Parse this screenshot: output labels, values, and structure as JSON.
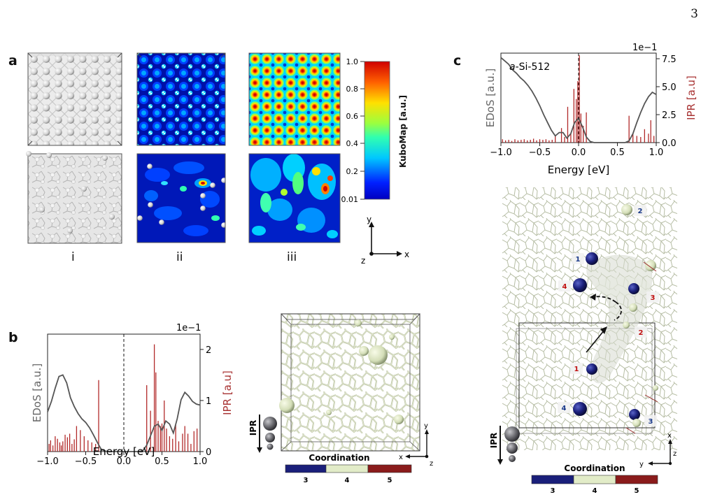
{
  "page_number": "3",
  "panel_labels": {
    "a": "a",
    "b": "b",
    "c": "c"
  },
  "panel_a": {
    "column_labels": [
      "i",
      "ii",
      "iii"
    ],
    "colorbar": {
      "title": "KuboMap [a.u.]",
      "ticks": [
        "1.0",
        "0.8",
        "0.6",
        "0.4",
        "0.2",
        "0.01"
      ]
    },
    "axes": {
      "y": "y",
      "x": "x",
      "z": "z"
    }
  },
  "panel_b": {
    "xlabel": "Energy [eV]",
    "ylabel_left": "EDoS [a.u.]",
    "ylabel_right": "IPR [a.u]",
    "offset_text": "1e−1",
    "xticks": [
      "−1.0",
      "−0.5",
      "0.0",
      "0.5",
      "1.0"
    ],
    "yticks_right": [
      "0",
      "1",
      "2"
    ],
    "ipr_legend": "IPR",
    "coordination": {
      "title": "Coordination",
      "labels": [
        "3",
        "4",
        "5"
      ],
      "colors": [
        "#1a1f7a",
        "#e2ecc8",
        "#8a1b1b"
      ]
    },
    "axes": {
      "y": "y",
      "x": "x",
      "z": "z"
    }
  },
  "panel_c": {
    "title": "a-Si-512",
    "title_italic": "a",
    "title_rest": "-Si-512",
    "xlabel": "Energy [eV]",
    "ylabel_left": "EDoS [a.u.]",
    "ylabel_right": "IPR [a.u]",
    "offset_text": "1e−1",
    "xticks": [
      "−1.0",
      "−0.5",
      "0.0",
      "0.5",
      "1.0"
    ],
    "yticks_right": [
      "0.0",
      "2.5",
      "5.0",
      "7.5"
    ],
    "ipr_legend": "IPR",
    "coordination": {
      "title": "Coordination",
      "labels": [
        "3",
        "4",
        "5"
      ],
      "colors": [
        "#1a1f7a",
        "#e2ecc8",
        "#8a1b1b"
      ]
    },
    "site_labels": [
      {
        "text": "2",
        "color": "#1a3a8a"
      },
      {
        "text": "1",
        "color": "#1a3a8a"
      },
      {
        "text": "4",
        "color": "#c01010"
      },
      {
        "text": "3",
        "color": "#c01010"
      },
      {
        "text": "2",
        "color": "#c01010"
      },
      {
        "text": "1",
        "color": "#c01010"
      },
      {
        "text": "4",
        "color": "#1a3a8a"
      },
      {
        "text": "3",
        "color": "#1a3a8a"
      }
    ],
    "axes": {
      "x": "x",
      "y": "y",
      "z": "z"
    }
  },
  "chart_data": [
    {
      "type": "line",
      "panel": "b",
      "xlabel": "Energy [eV]",
      "ylabel": "EDoS [a.u.]",
      "y2label": "IPR [a.u]",
      "xlim": [
        -1.0,
        1.0
      ],
      "y2lim": [
        0,
        2.3
      ],
      "series": [
        {
          "name": "EDoS",
          "x": [
            -1.0,
            -0.95,
            -0.9,
            -0.85,
            -0.8,
            -0.75,
            -0.7,
            -0.65,
            -0.6,
            -0.55,
            -0.5,
            -0.45,
            -0.4,
            -0.35,
            -0.3,
            -0.25,
            -0.2,
            -0.1,
            0.0,
            0.1,
            0.2,
            0.25,
            0.3,
            0.35,
            0.4,
            0.45,
            0.5,
            0.55,
            0.6,
            0.65,
            0.7,
            0.75,
            0.8,
            0.85,
            0.9,
            0.95,
            1.0
          ],
          "y": [
            0.75,
            0.95,
            1.2,
            1.42,
            1.45,
            1.3,
            1.02,
            0.85,
            0.72,
            0.62,
            0.55,
            0.45,
            0.32,
            0.18,
            0.05,
            0.01,
            0,
            0,
            0,
            0,
            0,
            0.02,
            0.12,
            0.3,
            0.48,
            0.52,
            0.4,
            0.58,
            0.52,
            0.35,
            0.62,
            0.98,
            1.12,
            1.05,
            0.95,
            0.9,
            0.88
          ]
        },
        {
          "name": "IPR",
          "type": "bar",
          "x": [
            -0.98,
            -0.96,
            -0.93,
            -0.9,
            -0.87,
            -0.84,
            -0.82,
            -0.8,
            -0.77,
            -0.74,
            -0.71,
            -0.68,
            -0.65,
            -0.62,
            -0.57,
            -0.52,
            -0.47,
            -0.42,
            -0.37,
            -0.33,
            0.3,
            0.35,
            0.4,
            0.42,
            0.45,
            0.48,
            0.5,
            0.53,
            0.56,
            0.6,
            0.64,
            0.68,
            0.72,
            0.77,
            0.8,
            0.84,
            0.88,
            0.92,
            0.96
          ],
          "y": [
            0.15,
            0.22,
            0.12,
            0.3,
            0.25,
            0.18,
            0.12,
            0.2,
            0.33,
            0.28,
            0.35,
            0.15,
            0.24,
            0.5,
            0.42,
            0.3,
            0.22,
            0.18,
            0.15,
            1.4,
            1.3,
            0.8,
            2.1,
            1.55,
            0.6,
            0.5,
            0.55,
            1.0,
            0.45,
            0.3,
            0.25,
            0.52,
            0.2,
            0.35,
            0.5,
            0.35,
            0.15,
            0.4,
            0.45
          ]
        }
      ]
    },
    {
      "type": "line",
      "panel": "c",
      "title": "a-Si-512",
      "xlabel": "Energy [eV]",
      "ylabel": "EDoS [a.u.]",
      "y2label": "IPR [a.u]",
      "xlim": [
        -1.0,
        1.0
      ],
      "y2lim": [
        0,
        8.0
      ],
      "series": [
        {
          "name": "EDoS",
          "x": [
            -1.0,
            -0.95,
            -0.9,
            -0.85,
            -0.8,
            -0.75,
            -0.7,
            -0.65,
            -0.6,
            -0.55,
            -0.5,
            -0.45,
            -0.4,
            -0.35,
            -0.3,
            -0.25,
            -0.2,
            -0.15,
            -0.1,
            -0.05,
            0.0,
            0.05,
            0.1,
            0.15,
            0.2,
            0.3,
            0.4,
            0.5,
            0.6,
            0.65,
            0.7,
            0.75,
            0.8,
            0.85,
            0.9,
            0.95,
            1.0
          ],
          "y": [
            7.6,
            7.3,
            7.0,
            6.5,
            6.2,
            5.8,
            5.5,
            5.1,
            4.6,
            4.0,
            3.3,
            2.5,
            1.8,
            1.1,
            0.6,
            0.9,
            0.9,
            0.4,
            0.8,
            1.8,
            2.2,
            1.4,
            0.5,
            0.1,
            0,
            0,
            0,
            0,
            0,
            0.15,
            0.8,
            1.8,
            2.7,
            3.5,
            4.1,
            4.5,
            4.3
          ]
        },
        {
          "name": "IPR",
          "type": "bar",
          "x": [
            -0.98,
            -0.94,
            -0.9,
            -0.86,
            -0.82,
            -0.78,
            -0.74,
            -0.7,
            -0.66,
            -0.62,
            -0.58,
            -0.54,
            -0.5,
            -0.46,
            -0.42,
            -0.38,
            -0.34,
            -0.3,
            -0.22,
            -0.18,
            -0.14,
            -0.1,
            -0.06,
            -0.03,
            -0.01,
            0.01,
            0.03,
            0.06,
            0.1,
            0.65,
            0.7,
            0.75,
            0.8,
            0.85,
            0.9,
            0.93,
            0.97
          ],
          "y": [
            0.3,
            0.2,
            0.25,
            0.15,
            0.3,
            0.2,
            0.25,
            0.3,
            0.2,
            0.25,
            0.35,
            0.2,
            0.3,
            0.25,
            0.3,
            0.2,
            0.25,
            0.6,
            1.3,
            0.5,
            3.2,
            0.8,
            4.8,
            3.9,
            5.5,
            7.8,
            2.6,
            1.5,
            2.7,
            2.4,
            0.8,
            0.6,
            0.5,
            1.2,
            0.8,
            2.0,
            0.6
          ]
        }
      ]
    }
  ]
}
